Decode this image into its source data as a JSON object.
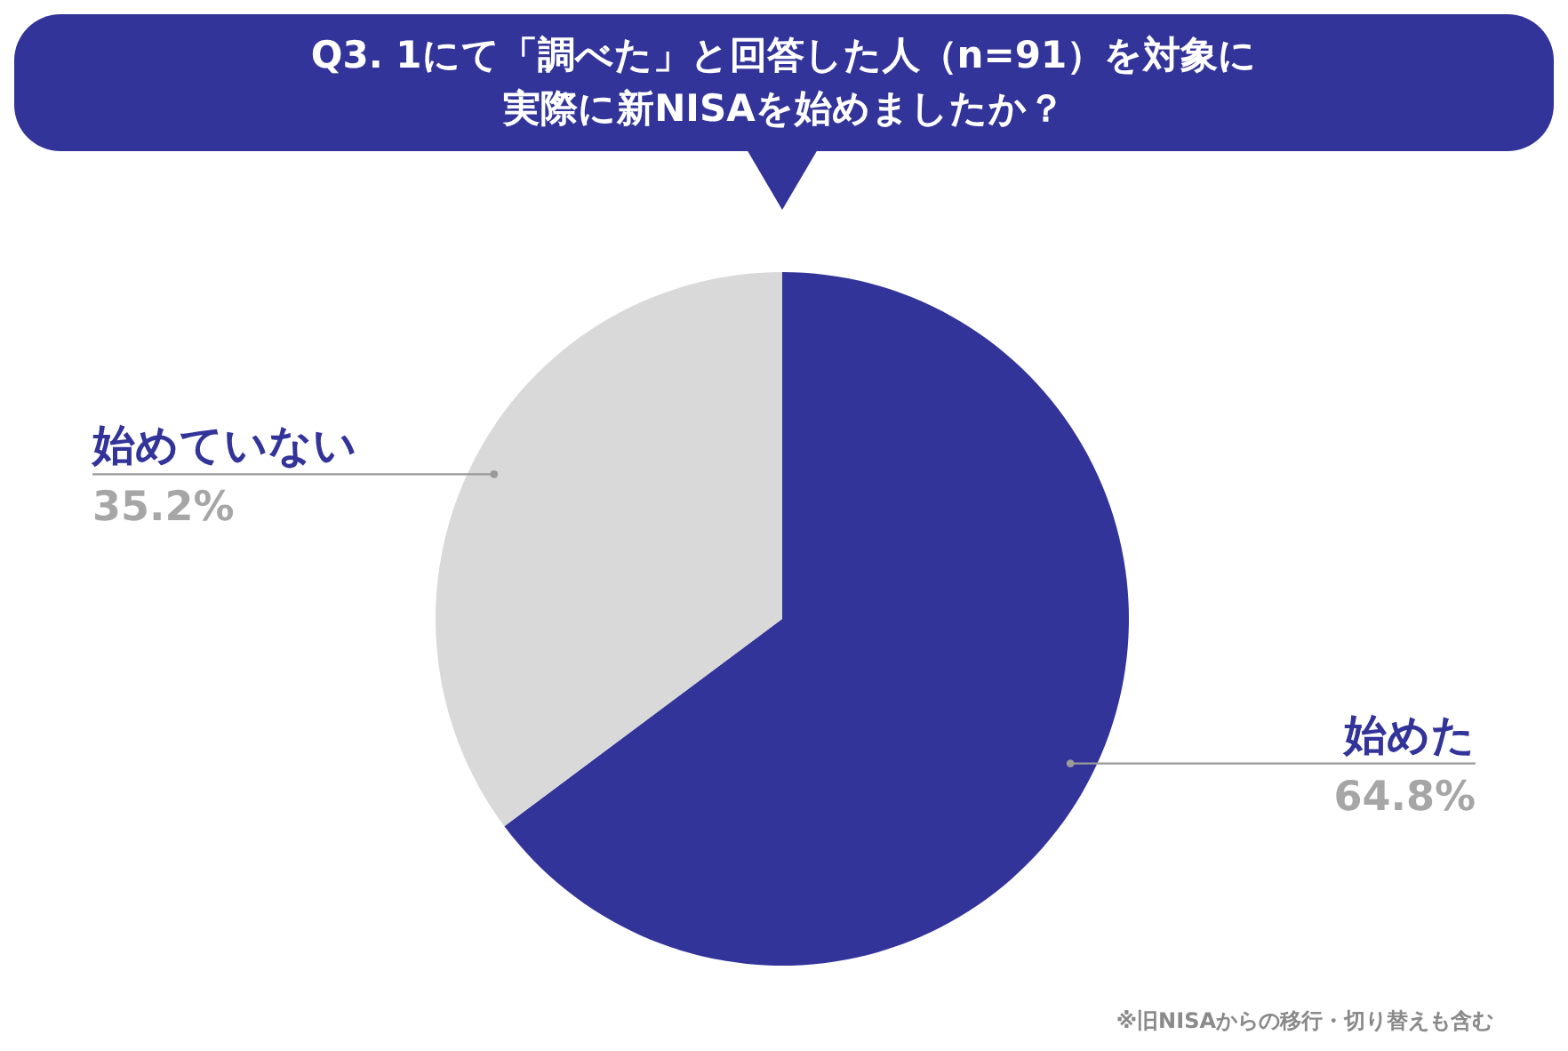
{
  "chart_data": {
    "type": "pie",
    "title": "Q3. 1にて「調べた」と回答した人（n=91）を対象に",
    "subtitle": "実際に新NISAを始めましたか？",
    "categories": [
      "始めた",
      "始めていない"
    ],
    "values": [
      64.8,
      35.2
    ],
    "colors": [
      "#33349a",
      "#d9d9d9"
    ],
    "value_labels": [
      "64.8%",
      "35.2%"
    ],
    "annotations": [
      "※旧NISAからの移行・切り替えも含む"
    ]
  }
}
